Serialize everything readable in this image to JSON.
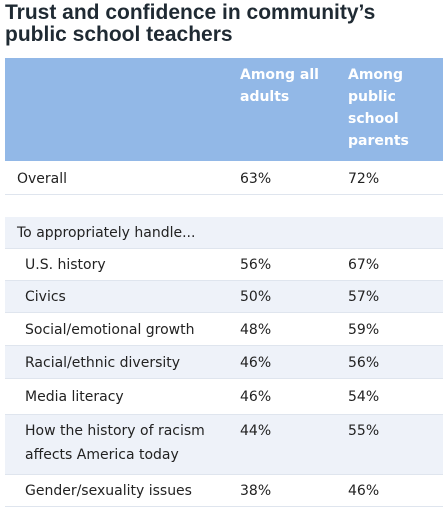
{
  "title": "Trust and confidence in community’s public school teachers",
  "table": {
    "columns": [
      "Among all adults",
      "Among public school parents"
    ],
    "rows": [
      {
        "label": "Overall",
        "values": [
          "63%",
          "72%"
        ]
      }
    ],
    "section": {
      "label": "To appropriately handle...",
      "rows": [
        {
          "label": "U.S. history",
          "values": [
            "56%",
            "67%"
          ]
        },
        {
          "label": "Civics",
          "values": [
            "50%",
            "57%"
          ]
        },
        {
          "label": "Social/emotional growth",
          "values": [
            "48%",
            "59%"
          ]
        },
        {
          "label": "Racial/ethnic diversity",
          "values": [
            "46%",
            "56%"
          ]
        },
        {
          "label": "Media literacy",
          "values": [
            "46%",
            "54%"
          ]
        },
        {
          "label": "How the history of racism affects America today",
          "values": [
            "44%",
            "55%"
          ]
        },
        {
          "label": "Gender/sexuality issues",
          "values": [
            "38%",
            "46%"
          ]
        }
      ]
    }
  }
}
